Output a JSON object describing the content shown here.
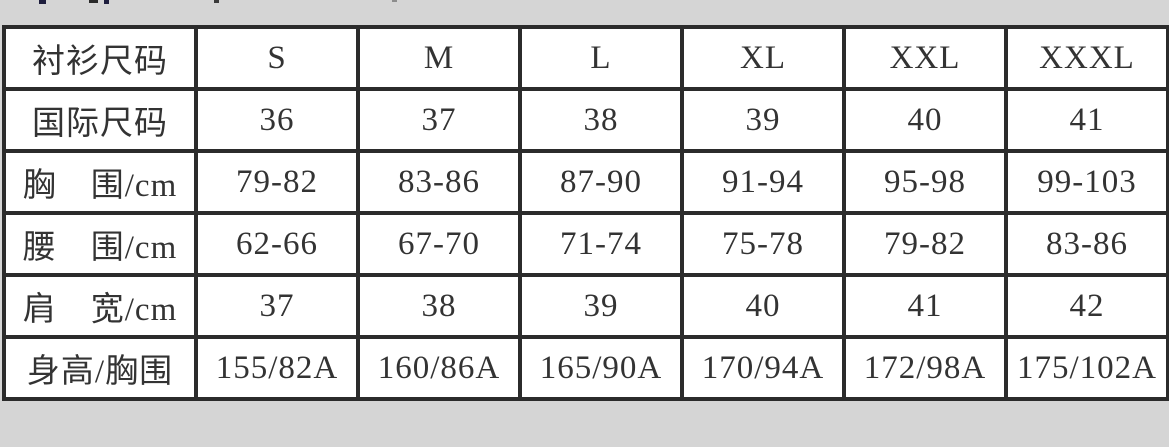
{
  "page": {
    "background_color": "#d5d5d5",
    "table_border_color": "#2b2b2b",
    "cell_background_color": "#ffffff",
    "text_color": "#333333"
  },
  "size_chart": {
    "columns": [
      "衬衫尺码",
      "S",
      "M",
      "L",
      "XL",
      "XXL",
      "XXXL"
    ],
    "rows": [
      {
        "label": "国际尺码",
        "values": [
          "36",
          "37",
          "38",
          "39",
          "40",
          "41"
        ]
      },
      {
        "label": "胸　围/cm",
        "values": [
          "79-82",
          "83-86",
          "87-90",
          "91-94",
          "95-98",
          "99-103"
        ]
      },
      {
        "label": "腰　围/cm",
        "values": [
          "62-66",
          "67-70",
          "71-74",
          "75-78",
          "79-82",
          "83-86"
        ]
      },
      {
        "label": "肩　宽/cm",
        "values": [
          "37",
          "38",
          "39",
          "40",
          "41",
          "42"
        ]
      },
      {
        "label": "身高/胸围",
        "values": [
          "155/82A",
          "160/86A",
          "165/90A",
          "170/94A",
          "172/98A",
          "175/102A"
        ]
      }
    ]
  }
}
